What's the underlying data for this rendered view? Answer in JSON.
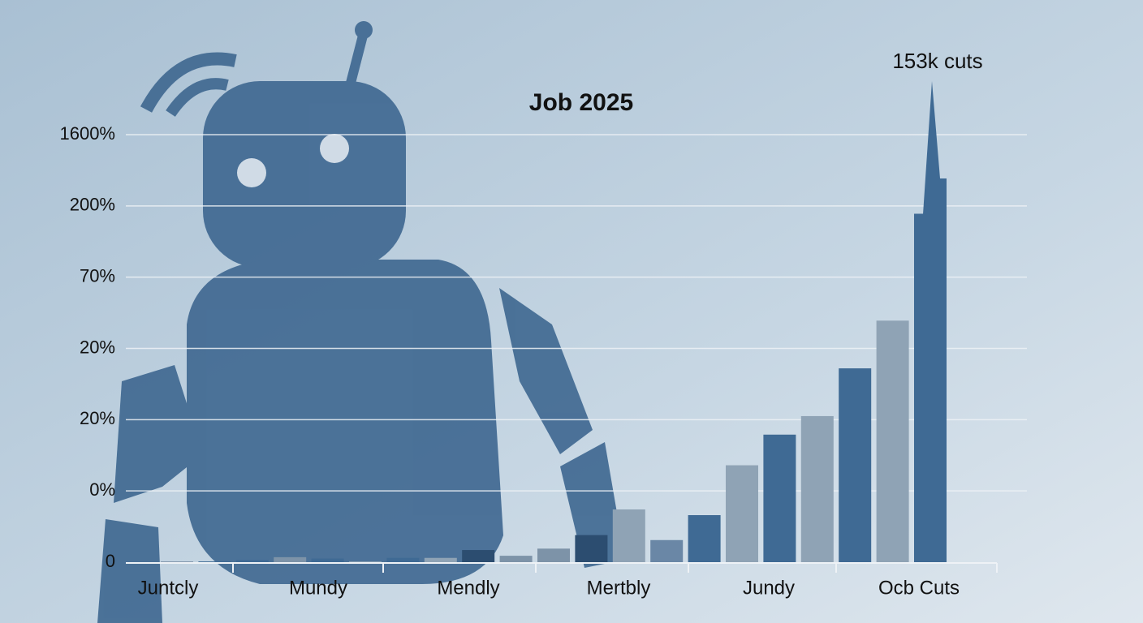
{
  "chart_data": {
    "type": "bar",
    "title": "Job 2025",
    "annotation": "153k cuts",
    "x_labels": [
      "Juntcly",
      "Mundy",
      "Mendly",
      "Mertbly",
      "Jundy",
      "Ocb Cuts"
    ],
    "values": [
      0.01,
      0.01,
      0.03,
      0.07,
      0.05,
      0.01,
      0.06,
      0.06,
      0.17,
      0.09,
      0.19,
      0.38,
      0.74,
      0.31,
      0.66,
      1.36,
      1.79,
      2.05,
      2.72,
      3.39,
      4.89
    ],
    "colors": [
      "#7d93a8",
      "#3f6a94",
      "#3f6a94",
      "#7d93a8",
      "#3f6a94",
      "#8fa3b5",
      "#3f6a94",
      "#8fa3b5",
      "#2c4d70",
      "#7d93a8",
      "#7d93a8",
      "#2c4d70",
      "#8fa3b5",
      "#6a87a6",
      "#3f6a94",
      "#8fa3b5",
      "#3f6a94",
      "#8fa3b5",
      "#3f6a94",
      "#8fa3b5",
      "#3f6a94"
    ],
    "ylim": [
      0,
      6
    ],
    "yticks": [
      {
        "value": 0,
        "label": "0"
      },
      {
        "value": 1,
        "label": "0%"
      },
      {
        "value": 2,
        "label": "20%"
      },
      {
        "value": 3,
        "label": "20%"
      },
      {
        "value": 4,
        "label": "70%"
      },
      {
        "value": 5,
        "label": "200%"
      },
      {
        "value": 6,
        "label": "1600%"
      }
    ],
    "grid": true
  }
}
